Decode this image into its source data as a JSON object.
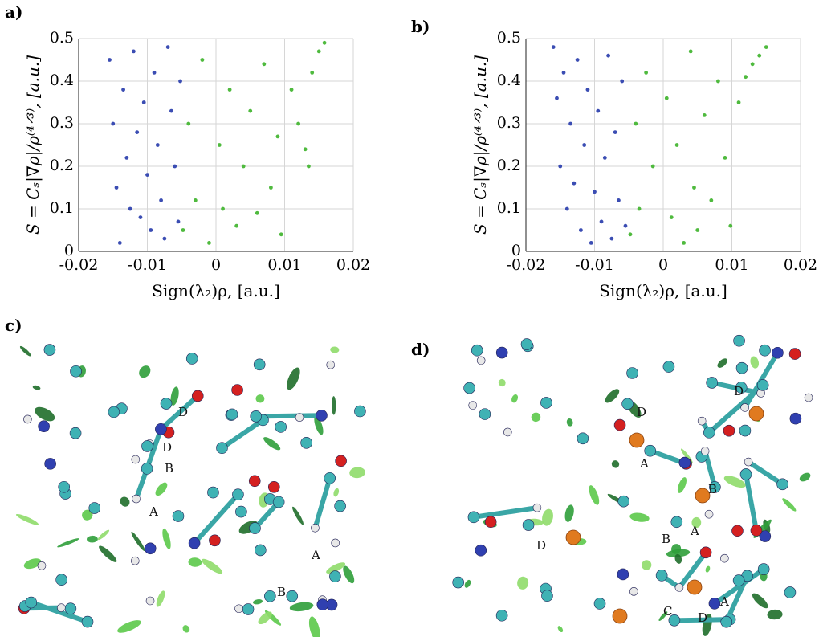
{
  "panels": {
    "a": "a)",
    "b": "b)",
    "c": "c)",
    "d": "d)"
  },
  "chart_data": [
    {
      "type": "scatter",
      "ylabel": "S = Cₛ|∇ρ|/ρ⁽⁴ᐟ³⁾, [a.u.]",
      "xlabel": "Sign(λ₂)ρ, [a.u.]",
      "xlim": [
        -0.02,
        0.02
      ],
      "ylim": [
        0,
        0.5
      ],
      "xticks": [
        -0.02,
        -0.01,
        0,
        0.01,
        0.02
      ],
      "yticks": [
        0,
        0.1,
        0.2,
        0.3,
        0.4,
        0.5
      ],
      "grid": true,
      "series": [
        {
          "color": "#3b4db3",
          "x": [
            -0.0155,
            -0.015,
            -0.0145,
            -0.014,
            -0.0135,
            -0.013,
            -0.0125,
            -0.012,
            -0.0115,
            -0.011,
            -0.0105,
            -0.01,
            -0.0095,
            -0.009,
            -0.0085,
            -0.008,
            -0.0075,
            -0.007,
            -0.0065,
            -0.006,
            -0.0055,
            -0.0052
          ],
          "values": [
            0.45,
            0.3,
            0.15,
            0.02,
            0.38,
            0.22,
            0.1,
            0.47,
            0.28,
            0.08,
            0.35,
            0.18,
            0.05,
            0.42,
            0.25,
            0.12,
            0.03,
            0.48,
            0.33,
            0.2,
            0.07,
            0.4
          ]
        },
        {
          "color": "#4fba3e",
          "x": [
            -0.0048,
            -0.004,
            -0.003,
            -0.002,
            -0.001,
            0.0005,
            0.001,
            0.002,
            0.003,
            0.004,
            0.005,
            0.006,
            0.007,
            0.008,
            0.009,
            0.0095,
            0.011,
            0.012,
            0.013,
            0.0135,
            0.014,
            0.015,
            0.0158
          ],
          "values": [
            0.05,
            0.3,
            0.12,
            0.45,
            0.02,
            0.25,
            0.1,
            0.38,
            0.06,
            0.2,
            0.33,
            0.09,
            0.44,
            0.15,
            0.27,
            0.04,
            0.38,
            0.3,
            0.24,
            0.2,
            0.42,
            0.47,
            0.49
          ]
        }
      ]
    },
    {
      "type": "scatter",
      "ylabel": "S = Cₛ|∇ρ|/ρ⁽⁴ᐟ³⁾, [a.u.]",
      "xlabel": "Sign(λ₂)ρ, [a.u.]",
      "xlim": [
        -0.02,
        0.02
      ],
      "ylim": [
        0,
        0.5
      ],
      "xticks": [
        -0.02,
        -0.01,
        0,
        0.01,
        0.02
      ],
      "yticks": [
        0,
        0.1,
        0.2,
        0.3,
        0.4,
        0.5
      ],
      "grid": true,
      "series": [
        {
          "color": "#3b4db3",
          "x": [
            -0.016,
            -0.0155,
            -0.015,
            -0.0145,
            -0.014,
            -0.0135,
            -0.013,
            -0.0125,
            -0.012,
            -0.0115,
            -0.011,
            -0.0105,
            -0.01,
            -0.0095,
            -0.009,
            -0.0085,
            -0.008,
            -0.0075,
            -0.007,
            -0.0065,
            -0.006,
            -0.0055
          ],
          "values": [
            0.48,
            0.36,
            0.2,
            0.42,
            0.1,
            0.3,
            0.16,
            0.45,
            0.05,
            0.25,
            0.38,
            0.02,
            0.14,
            0.33,
            0.07,
            0.22,
            0.46,
            0.03,
            0.28,
            0.12,
            0.4,
            0.06
          ]
        },
        {
          "color": "#4fba3e",
          "x": [
            -0.0048,
            -0.004,
            -0.0035,
            -0.0025,
            -0.0015,
            0.0005,
            0.0012,
            0.002,
            0.003,
            0.004,
            0.0045,
            0.005,
            0.006,
            0.007,
            0.008,
            0.009,
            0.0098,
            0.011,
            0.012,
            0.013,
            0.014,
            0.015
          ],
          "values": [
            0.04,
            0.3,
            0.1,
            0.42,
            0.2,
            0.36,
            0.08,
            0.25,
            0.02,
            0.47,
            0.15,
            0.05,
            0.32,
            0.12,
            0.4,
            0.22,
            0.06,
            0.35,
            0.41,
            0.44,
            0.46,
            0.48
          ]
        }
      ]
    }
  ],
  "annotations": {
    "c": [
      "D",
      "D",
      "B",
      "A",
      "A",
      "B"
    ],
    "d": [
      "D",
      "D",
      "A",
      "B",
      "A",
      "B",
      "D",
      "C",
      "D",
      "A"
    ]
  }
}
